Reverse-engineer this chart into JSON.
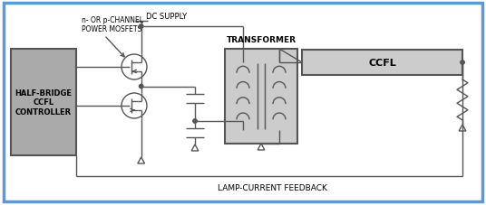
{
  "bg_color": "#ffffff",
  "border_color": "#5b9bd5",
  "line_color": "#555555",
  "fill_gray": "#aaaaaa",
  "fill_light": "#cccccc",
  "labels": {
    "n_channel": "n- OR p-CHANNEL\nPOWER MOSFETS",
    "dc_supply": "DC SUPPLY",
    "transformer": "TRANSFORMER",
    "ccfl": "CCFL",
    "half_bridge": "HALF-BRIDGE\nCCFL\nCONTROLLER",
    "lamp_feedback": "LAMP-CURRENT FEEDBACK"
  }
}
